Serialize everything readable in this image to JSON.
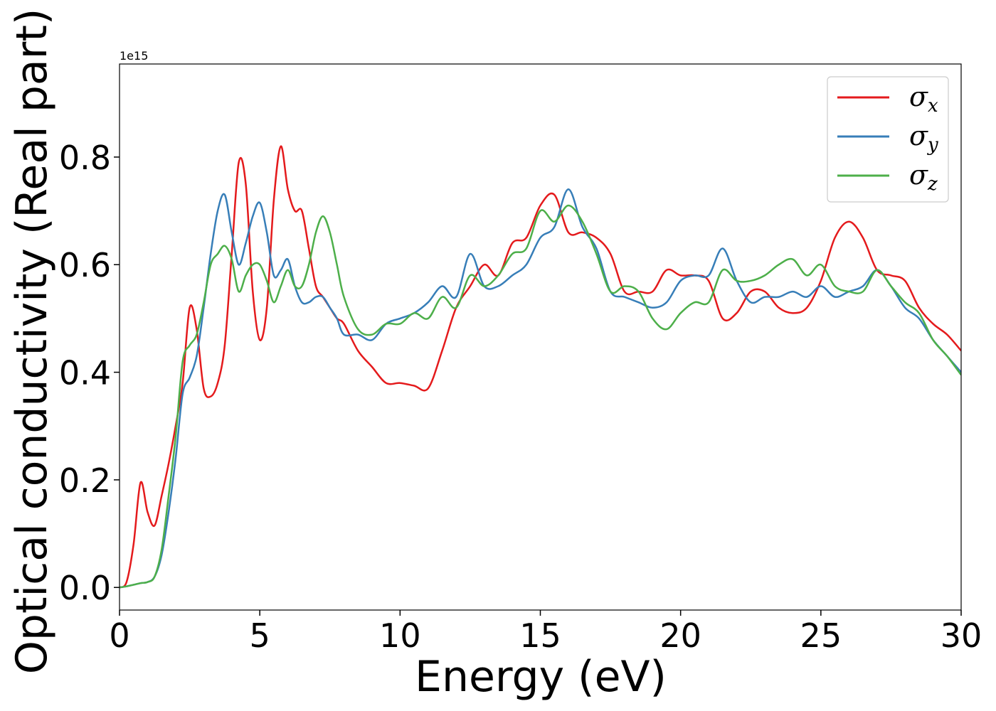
{
  "chart_data": {
    "type": "line",
    "xlabel": "Energy (eV)",
    "ylabel": "Optical conductivity (Real part)",
    "y_offset": "1e15",
    "x": [
      0,
      0.25,
      0.5,
      0.75,
      1,
      1.25,
      1.5,
      1.75,
      2,
      2.25,
      2.5,
      2.75,
      3,
      3.25,
      3.5,
      3.75,
      4,
      4.25,
      4.5,
      4.75,
      5,
      5.25,
      5.5,
      5.75,
      6,
      6.25,
      6.5,
      6.75,
      7,
      7.25,
      7.5,
      7.75,
      8,
      8.5,
      9,
      9.5,
      10,
      10.5,
      11,
      11.5,
      12,
      12.5,
      13,
      13.5,
      14,
      14.5,
      15,
      15.5,
      16,
      16.5,
      17,
      17.5,
      18,
      18.5,
      19,
      19.5,
      20,
      20.5,
      21,
      21.5,
      22,
      22.5,
      23,
      23.5,
      24,
      24.5,
      25,
      25.5,
      26,
      26.5,
      27,
      27.5,
      28,
      28.5,
      29,
      29.5,
      30
    ],
    "series": [
      {
        "name": "σx",
        "color": "#e41a1c",
        "values": [
          0,
          0.01,
          0.08,
          0.195,
          0.14,
          0.115,
          0.17,
          0.23,
          0.3,
          0.38,
          0.52,
          0.48,
          0.37,
          0.355,
          0.38,
          0.45,
          0.62,
          0.79,
          0.75,
          0.55,
          0.46,
          0.52,
          0.72,
          0.82,
          0.74,
          0.7,
          0.7,
          0.63,
          0.56,
          0.54,
          0.52,
          0.5,
          0.49,
          0.44,
          0.41,
          0.38,
          0.38,
          0.375,
          0.37,
          0.44,
          0.52,
          0.56,
          0.6,
          0.58,
          0.64,
          0.65,
          0.71,
          0.73,
          0.66,
          0.66,
          0.65,
          0.62,
          0.55,
          0.55,
          0.55,
          0.59,
          0.58,
          0.58,
          0.57,
          0.5,
          0.51,
          0.55,
          0.55,
          0.52,
          0.51,
          0.52,
          0.57,
          0.65,
          0.68,
          0.65,
          0.59,
          0.58,
          0.57,
          0.52,
          0.49,
          0.47,
          0.44
        ]
      },
      {
        "name": "σy",
        "color": "#377eb8",
        "values": [
          0,
          0.002,
          0.005,
          0.008,
          0.01,
          0.02,
          0.06,
          0.14,
          0.24,
          0.36,
          0.39,
          0.43,
          0.52,
          0.62,
          0.7,
          0.73,
          0.66,
          0.6,
          0.64,
          0.69,
          0.715,
          0.66,
          0.58,
          0.59,
          0.61,
          0.56,
          0.53,
          0.53,
          0.54,
          0.54,
          0.52,
          0.5,
          0.47,
          0.47,
          0.46,
          0.49,
          0.5,
          0.51,
          0.53,
          0.56,
          0.54,
          0.62,
          0.56,
          0.56,
          0.58,
          0.6,
          0.65,
          0.67,
          0.74,
          0.67,
          0.63,
          0.55,
          0.54,
          0.53,
          0.52,
          0.53,
          0.57,
          0.58,
          0.58,
          0.63,
          0.57,
          0.53,
          0.54,
          0.54,
          0.55,
          0.54,
          0.56,
          0.54,
          0.55,
          0.56,
          0.59,
          0.56,
          0.52,
          0.5,
          0.46,
          0.43,
          0.4
        ]
      },
      {
        "name": "σz",
        "color": "#4daf4a",
        "values": [
          0,
          0.002,
          0.005,
          0.008,
          0.01,
          0.02,
          0.07,
          0.17,
          0.28,
          0.42,
          0.45,
          0.47,
          0.53,
          0.6,
          0.62,
          0.635,
          0.61,
          0.55,
          0.58,
          0.6,
          0.6,
          0.57,
          0.53,
          0.56,
          0.59,
          0.56,
          0.56,
          0.6,
          0.66,
          0.69,
          0.66,
          0.6,
          0.54,
          0.48,
          0.47,
          0.49,
          0.49,
          0.51,
          0.5,
          0.54,
          0.52,
          0.58,
          0.56,
          0.58,
          0.62,
          0.63,
          0.7,
          0.68,
          0.71,
          0.68,
          0.62,
          0.55,
          0.56,
          0.55,
          0.5,
          0.48,
          0.51,
          0.53,
          0.53,
          0.59,
          0.57,
          0.57,
          0.58,
          0.6,
          0.61,
          0.58,
          0.6,
          0.56,
          0.55,
          0.55,
          0.59,
          0.56,
          0.53,
          0.51,
          0.46,
          0.43,
          0.395
        ]
      }
    ],
    "xlim": [
      0,
      30
    ],
    "xticks": [
      0,
      5,
      10,
      15,
      20,
      25,
      30
    ],
    "ylim": [
      -0.042,
      0.973
    ],
    "yticks": [
      {
        "value": 0,
        "label": "0.0"
      },
      0.2,
      0.4,
      0.6,
      0.8
    ],
    "grid": false,
    "legend": "upper right"
  }
}
